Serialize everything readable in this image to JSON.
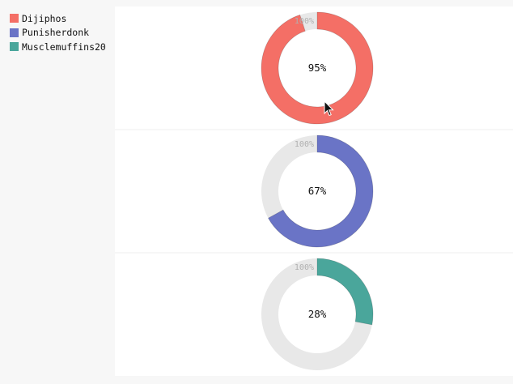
{
  "chart_data": {
    "type": "solid-gauge",
    "max": 100,
    "max_label": "100%",
    "legend_position": "top-left",
    "series": [
      {
        "name": "Dijiphos",
        "value": 95,
        "label": "95%",
        "color": "#f46f66"
      },
      {
        "name": "Punisherdonk",
        "value": 67,
        "label": "67%",
        "color": "#6a74c6"
      },
      {
        "name": "Musclemuffins20",
        "value": 28,
        "label": "28%",
        "color": "#4aa69b"
      }
    ]
  },
  "colors": {
    "track": "#e8e8e8",
    "background": "#f7f7f7",
    "plot_background": "#ffffff"
  },
  "icons": {
    "cursor": "mouse-pointer-icon"
  }
}
